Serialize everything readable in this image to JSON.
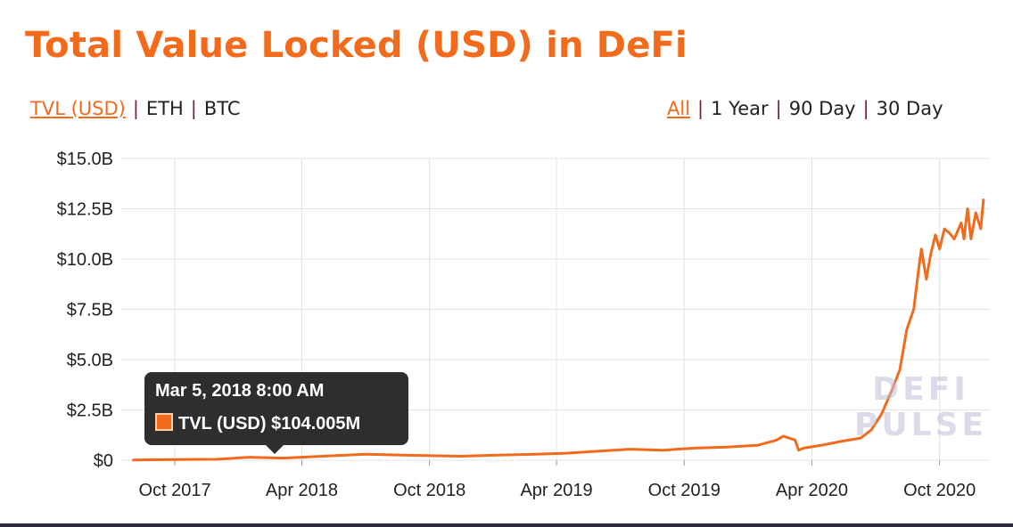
{
  "page": {
    "title": "Total Value Locked (USD) in DeFi",
    "currency_toggle": [
      {
        "label": "TVL (USD)",
        "active": true
      },
      {
        "label": "ETH",
        "active": false
      },
      {
        "label": "BTC",
        "active": false
      }
    ],
    "range_toggle": [
      {
        "label": "All",
        "active": true
      },
      {
        "label": "1 Year",
        "active": false
      },
      {
        "label": "90 Day",
        "active": false
      },
      {
        "label": "30 Day",
        "active": false
      }
    ],
    "tooltip": {
      "date": "Mar 5, 2018 8:00 AM",
      "series": "TVL (USD)",
      "value": "$104.005M"
    },
    "watermark": [
      "DEFI",
      "PULSE"
    ]
  },
  "colors": {
    "accent": "#f26a1c",
    "grid": "#e3e3e3",
    "separator": "#7a1f3d"
  },
  "chart_data": {
    "type": "line",
    "title": "Total Value Locked (USD) in DeFi",
    "ylabel": "",
    "xlabel": "",
    "y_unit": "USD billions",
    "ylim": [
      0,
      15
    ],
    "y_ticks": [
      {
        "value": 0,
        "label": "$0"
      },
      {
        "value": 2.5,
        "label": "$2.5B"
      },
      {
        "value": 5,
        "label": "$5.0B"
      },
      {
        "value": 7.5,
        "label": "$7.5B"
      },
      {
        "value": 10,
        "label": "$10.0B"
      },
      {
        "value": 12.5,
        "label": "$12.5B"
      },
      {
        "value": 15,
        "label": "$15.0B"
      }
    ],
    "x_ticks": [
      {
        "date": "2017-10-01",
        "label": "Oct 2017"
      },
      {
        "date": "2018-04-01",
        "label": "Apr 2018"
      },
      {
        "date": "2018-10-01",
        "label": "Oct 2018"
      },
      {
        "date": "2019-04-01",
        "label": "Apr 2019"
      },
      {
        "date": "2019-10-01",
        "label": "Oct 2019"
      },
      {
        "date": "2020-04-01",
        "label": "Apr 2020"
      },
      {
        "date": "2020-10-01",
        "label": "Oct 2020"
      }
    ],
    "grid": true,
    "series": [
      {
        "name": "TVL (USD)",
        "x": [
          "2017-08-01",
          "2017-10-01",
          "2017-12-01",
          "2018-01-15",
          "2018-03-05",
          "2018-05-01",
          "2018-07-01",
          "2018-09-01",
          "2018-11-15",
          "2019-01-01",
          "2019-03-01",
          "2019-04-15",
          "2019-06-01",
          "2019-07-15",
          "2019-09-01",
          "2019-10-15",
          "2019-12-01",
          "2020-01-15",
          "2020-02-10",
          "2020-02-20",
          "2020-03-08",
          "2020-03-13",
          "2020-03-20",
          "2020-04-15",
          "2020-05-15",
          "2020-06-10",
          "2020-06-25",
          "2020-07-10",
          "2020-07-25",
          "2020-08-05",
          "2020-08-15",
          "2020-08-25",
          "2020-09-01",
          "2020-09-05",
          "2020-09-12",
          "2020-09-18",
          "2020-09-25",
          "2020-10-01",
          "2020-10-08",
          "2020-10-15",
          "2020-10-22",
          "2020-11-01",
          "2020-11-05",
          "2020-11-10",
          "2020-11-15",
          "2020-11-22",
          "2020-11-29",
          "2020-12-03"
        ],
        "values": [
          0.01,
          0.03,
          0.05,
          0.15,
          0.104,
          0.2,
          0.3,
          0.25,
          0.2,
          0.25,
          0.3,
          0.35,
          0.45,
          0.55,
          0.5,
          0.6,
          0.65,
          0.75,
          1.0,
          1.2,
          1.0,
          0.5,
          0.6,
          0.75,
          0.95,
          1.1,
          1.5,
          2.3,
          3.5,
          4.5,
          6.5,
          7.5,
          9.5,
          10.5,
          9.0,
          10.2,
          11.2,
          10.5,
          11.5,
          11.3,
          11.0,
          11.8,
          11.0,
          12.5,
          11.0,
          12.3,
          11.5,
          13.0
        ]
      }
    ]
  }
}
